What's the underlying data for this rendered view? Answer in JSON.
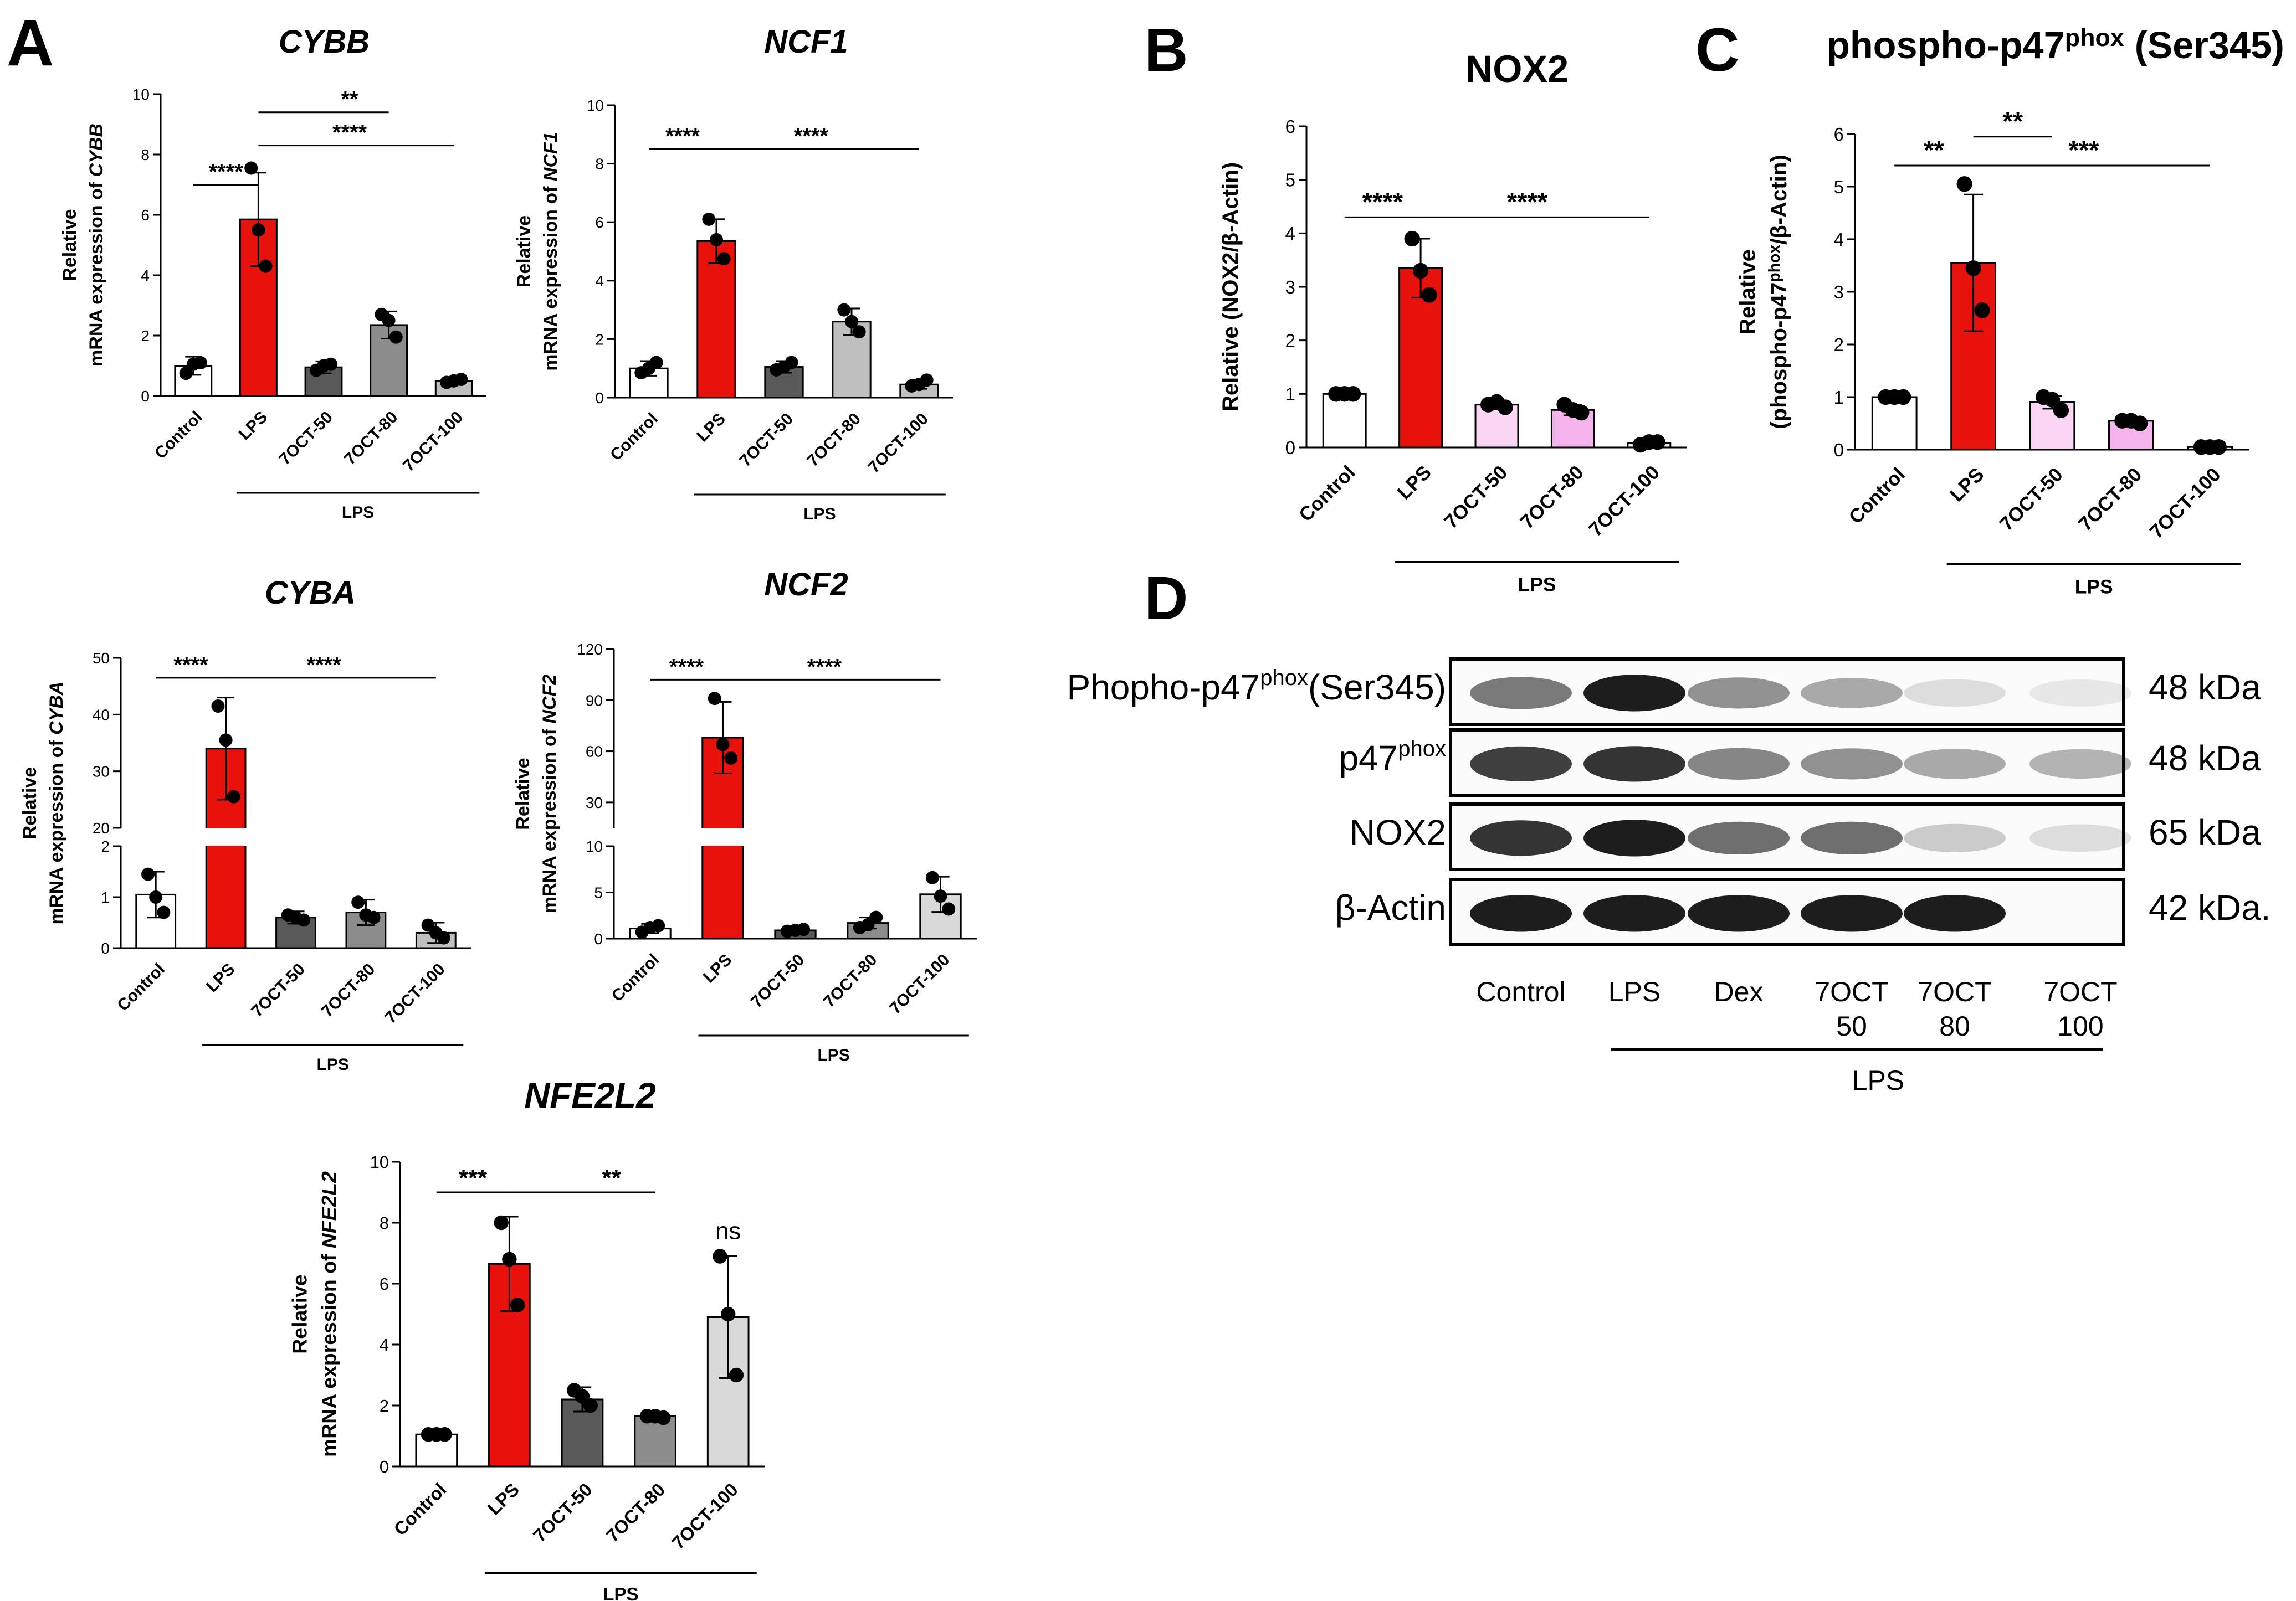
{
  "panel_letters": {
    "a": "A",
    "b": "B",
    "c": "C",
    "d": "D"
  },
  "colors": {
    "control": "#ffffff",
    "lps": "#e8120c",
    "dark_grey": "#595959",
    "mid_grey": "#8c8c8c",
    "light_grey": "#bfbfbf",
    "pale_grey": "#d9d9d9",
    "pink_light": "#fbd6f4",
    "pink_mid": "#f2b4ea",
    "pink_pale": "#fce8f8"
  },
  "chart_data": [
    {
      "id": "cybb",
      "panel": "A",
      "type": "bar",
      "italic_title": true,
      "title": "CYBB",
      "title_sup": "",
      "title_tail": "",
      "ylabel_lines": [
        [
          "Relative"
        ],
        [
          "mRNA expression of ",
          "CYBB"
        ]
      ],
      "categories": [
        "Control",
        "LPS",
        "7OCT-50",
        "7OCT-80",
        "7OCT-100"
      ],
      "values": [
        1.0,
        5.85,
        0.95,
        2.35,
        0.5
      ],
      "errors": [
        0.3,
        1.55,
        0.2,
        0.45,
        0.12
      ],
      "points": [
        [
          0.75,
          1.05,
          1.1
        ],
        [
          7.55,
          5.5,
          4.3
        ],
        [
          0.85,
          1.0,
          1.05
        ],
        [
          2.7,
          2.5,
          1.95
        ],
        [
          0.45,
          0.5,
          0.55
        ]
      ],
      "fill_keys": [
        "control",
        "lps",
        "dark_grey",
        "mid_grey",
        "light_grey"
      ],
      "ylim": [
        0,
        10
      ],
      "yticks": [
        0,
        2,
        4,
        6,
        8,
        10
      ],
      "group_label": "LPS",
      "significance": [
        {
          "from": 0,
          "to": 1,
          "label": "****",
          "level": 7.0
        },
        {
          "from": 1,
          "to": 3,
          "label": "**",
          "level": 9.4
        },
        {
          "from": 1,
          "to": 4,
          "label": "****",
          "level": 8.3
        }
      ]
    },
    {
      "id": "ncf1",
      "panel": "A",
      "type": "bar",
      "italic_title": true,
      "title": "NCF1",
      "title_sup": "",
      "title_tail": "",
      "ylabel_lines": [
        [
          "Relative"
        ],
        [
          "mRNA expression of ",
          "NCF1"
        ]
      ],
      "categories": [
        "Control",
        "LPS",
        "7OCT-50",
        "7OCT-80",
        "7OCT-100"
      ],
      "values": [
        1.0,
        5.35,
        1.05,
        2.6,
        0.45
      ],
      "errors": [
        0.25,
        0.75,
        0.2,
        0.45,
        0.15
      ],
      "points": [
        [
          0.85,
          1.0,
          1.2
        ],
        [
          6.1,
          5.4,
          4.75
        ],
        [
          0.95,
          1.05,
          1.2
        ],
        [
          3.0,
          2.6,
          2.25
        ],
        [
          0.4,
          0.45,
          0.6
        ]
      ],
      "fill_keys": [
        "control",
        "lps",
        "dark_grey",
        "light_grey",
        "light_grey"
      ],
      "ylim": [
        0,
        10
      ],
      "yticks": [
        0,
        2,
        4,
        6,
        8,
        10
      ],
      "group_label": "LPS",
      "significance": [
        {
          "from": 0,
          "to": 1,
          "label": "****",
          "level": 8.5
        },
        {
          "from": 1,
          "to": 4,
          "label": "****",
          "level": 8.5
        }
      ]
    },
    {
      "id": "nox2",
      "panel": "B",
      "type": "bar",
      "italic_title": false,
      "title": "NOX2",
      "title_sup": "",
      "title_tail": "",
      "ylabel_lines": [
        [
          "Relative (NOX2/β-Actin)"
        ]
      ],
      "categories": [
        "Control",
        "LPS",
        "7OCT-50",
        "7OCT-80",
        "7OCT-100"
      ],
      "values": [
        1.0,
        3.35,
        0.8,
        0.7,
        0.08
      ],
      "errors": [
        0.05,
        0.55,
        0.08,
        0.1,
        0.05
      ],
      "points": [
        [
          1.0,
          1.0,
          1.0
        ],
        [
          3.9,
          3.3,
          2.85
        ],
        [
          0.8,
          0.85,
          0.75
        ],
        [
          0.8,
          0.7,
          0.65
        ],
        [
          0.05,
          0.1,
          0.1
        ]
      ],
      "fill_keys": [
        "control",
        "lps",
        "pink_light",
        "pink_mid",
        "pink_pale"
      ],
      "ylim": [
        0,
        6
      ],
      "yticks": [
        0,
        1,
        2,
        3,
        4,
        5,
        6
      ],
      "group_label": "LPS",
      "significance": [
        {
          "from": 0,
          "to": 1,
          "label": "****",
          "level": 4.3
        },
        {
          "from": 1,
          "to": 4,
          "label": "****",
          "level": 4.3
        }
      ]
    },
    {
      "id": "p47",
      "panel": "C",
      "type": "bar",
      "italic_title": false,
      "title": "phospho-p47",
      "title_sup": "phox",
      "title_tail": " (Ser345)",
      "ylabel_lines": [
        [
          "Relative"
        ],
        [
          "(phospho-p47",
          "phox",
          "/β-Actin)"
        ]
      ],
      "categories": [
        "Control",
        "LPS",
        "7OCT-50",
        "7OCT-80",
        "7OCT-100"
      ],
      "values": [
        1.0,
        3.55,
        0.9,
        0.55,
        0.05
      ],
      "errors": [
        0.05,
        1.3,
        0.12,
        0.05,
        0.03
      ],
      "points": [
        [
          1.0,
          1.0,
          1.0
        ],
        [
          5.05,
          3.45,
          2.65
        ],
        [
          1.0,
          0.95,
          0.75
        ],
        [
          0.55,
          0.55,
          0.5
        ],
        [
          0.05,
          0.05,
          0.05
        ]
      ],
      "fill_keys": [
        "control",
        "lps",
        "pink_light",
        "pink_mid",
        "pink_pale"
      ],
      "ylim": [
        0,
        6
      ],
      "yticks": [
        0,
        1,
        2,
        3,
        4,
        5,
        6
      ],
      "group_label": "LPS",
      "significance": [
        {
          "from": 0,
          "to": 1,
          "label": "**",
          "level": 5.4
        },
        {
          "from": 1,
          "to": 2,
          "label": "**",
          "level": 5.95
        },
        {
          "from": 1,
          "to": 4,
          "label": "***",
          "level": 5.4
        }
      ]
    },
    {
      "id": "cyba",
      "panel": "A",
      "type": "bar",
      "italic_title": true,
      "broken_axis": true,
      "title": "CYBA",
      "title_sup": "",
      "title_tail": "",
      "ylabel_lines": [
        [
          "Relative"
        ],
        [
          "mRNA expression of ",
          "CYBA"
        ]
      ],
      "categories": [
        "Control",
        "LPS",
        "7OCT-50",
        "7OCT-80",
        "7OCT-100"
      ],
      "values": [
        1.05,
        34.0,
        0.6,
        0.7,
        0.3
      ],
      "errors": [
        0.45,
        9.0,
        0.12,
        0.25,
        0.2
      ],
      "points": [
        [
          1.45,
          1.0,
          0.7
        ],
        [
          41.5,
          35.5,
          25.5
        ],
        [
          0.65,
          0.6,
          0.55
        ],
        [
          0.9,
          0.65,
          0.6
        ],
        [
          0.45,
          0.3,
          0.2
        ]
      ],
      "fill_keys": [
        "control",
        "lps",
        "dark_grey",
        "mid_grey",
        "light_grey"
      ],
      "lower_ylim": [
        0,
        2
      ],
      "lower_yticks": [
        0,
        1,
        2
      ],
      "upper_ylim": [
        20,
        50
      ],
      "upper_yticks": [
        20,
        30,
        40,
        50
      ],
      "group_label": "LPS",
      "significance": [
        {
          "from": 0,
          "to": 1,
          "label": "****",
          "level": 46.5
        },
        {
          "from": 1,
          "to": 4,
          "label": "****",
          "level": 46.5
        }
      ]
    },
    {
      "id": "ncf2",
      "panel": "A",
      "type": "bar",
      "italic_title": true,
      "broken_axis": true,
      "title": "NCF2",
      "title_sup": "",
      "title_tail": "",
      "ylabel_lines": [
        [
          "Relative"
        ],
        [
          "mRNA expression of ",
          "NCF2"
        ]
      ],
      "categories": [
        "Control",
        "LPS",
        "7OCT-50",
        "7OCT-80",
        "7OCT-100"
      ],
      "values": [
        1.1,
        68.0,
        0.9,
        1.7,
        4.8
      ],
      "errors": [
        0.5,
        21.0,
        0.3,
        0.6,
        1.9
      ],
      "points": [
        [
          0.7,
          1.2,
          1.4
        ],
        [
          91.0,
          64.0,
          56.0
        ],
        [
          0.8,
          0.9,
          1.0
        ],
        [
          1.2,
          1.5,
          2.3
        ],
        [
          6.6,
          4.6,
          3.2
        ]
      ],
      "fill_keys": [
        "control",
        "lps",
        "dark_grey",
        "mid_grey",
        "pale_grey"
      ],
      "lower_ylim": [
        0,
        10
      ],
      "lower_yticks": [
        0,
        5,
        10
      ],
      "upper_ylim": [
        15,
        120
      ],
      "upper_yticks": [
        30,
        60,
        90,
        120
      ],
      "group_label": "LPS",
      "significance": [
        {
          "from": 0,
          "to": 1,
          "label": "****",
          "level": 102
        },
        {
          "from": 1,
          "to": 4,
          "label": "****",
          "level": 102
        }
      ]
    },
    {
      "id": "nfe2l2",
      "panel": "A",
      "type": "bar",
      "italic_title": true,
      "title": "NFE2L2",
      "title_sup": "",
      "title_tail": "",
      "ylabel_lines": [
        [
          "Relative"
        ],
        [
          "mRNA expression of ",
          "NFE2L2"
        ]
      ],
      "categories": [
        "Control",
        "LPS",
        "7OCT-50",
        "7OCT-80",
        "7OCT-100"
      ],
      "values": [
        1.05,
        6.65,
        2.2,
        1.65,
        4.9
      ],
      "errors": [
        0.05,
        1.55,
        0.4,
        0.05,
        2.0
      ],
      "points": [
        [
          1.05,
          1.05,
          1.05
        ],
        [
          8.0,
          6.8,
          5.3
        ],
        [
          2.5,
          2.3,
          2.0
        ],
        [
          1.65,
          1.65,
          1.6
        ],
        [
          6.9,
          5.0,
          3.0
        ]
      ],
      "fill_keys": [
        "control",
        "lps",
        "dark_grey",
        "mid_grey",
        "pale_grey"
      ],
      "ylim": [
        0,
        10
      ],
      "yticks": [
        0,
        2,
        4,
        6,
        8,
        10
      ],
      "group_label": "LPS",
      "significance": [
        {
          "from": 0,
          "to": 1,
          "label": "***",
          "level": 9.0
        },
        {
          "from": 1,
          "to": 3,
          "label": "**",
          "level": 9.0
        }
      ],
      "bar_annotations": [
        {
          "index": 4,
          "label": "ns"
        }
      ]
    }
  ],
  "western_blot": {
    "rows": [
      {
        "label": "Phopho-p47",
        "label_sup": "phox",
        "label_tail": "(Ser345)",
        "mass": "48 kDa",
        "intensities": [
          0.55,
          0.95,
          0.45,
          0.35,
          0.12,
          0.08
        ]
      },
      {
        "label": "p47",
        "label_sup": "phox",
        "label_tail": "",
        "mass": "48 kDa",
        "intensities": [
          0.8,
          0.85,
          0.5,
          0.45,
          0.35,
          0.3
        ]
      },
      {
        "label": "NOX2",
        "label_sup": "",
        "label_tail": "",
        "mass": "65 kDa",
        "intensities": [
          0.85,
          0.95,
          0.6,
          0.6,
          0.2,
          0.12
        ]
      },
      {
        "label": "β-Actin",
        "label_sup": "",
        "label_tail": "",
        "mass": "42 kDa.",
        "intensities": [
          0.95,
          0.95,
          0.95,
          0.95,
          0.95,
          0.0
        ]
      }
    ],
    "lane_labels": [
      [
        "Control"
      ],
      [
        "LPS"
      ],
      [
        "Dex"
      ],
      [
        "7OCT",
        "50"
      ],
      [
        "7OCT",
        "80"
      ],
      [
        "7OCT",
        "100"
      ]
    ],
    "group_label": "LPS"
  }
}
